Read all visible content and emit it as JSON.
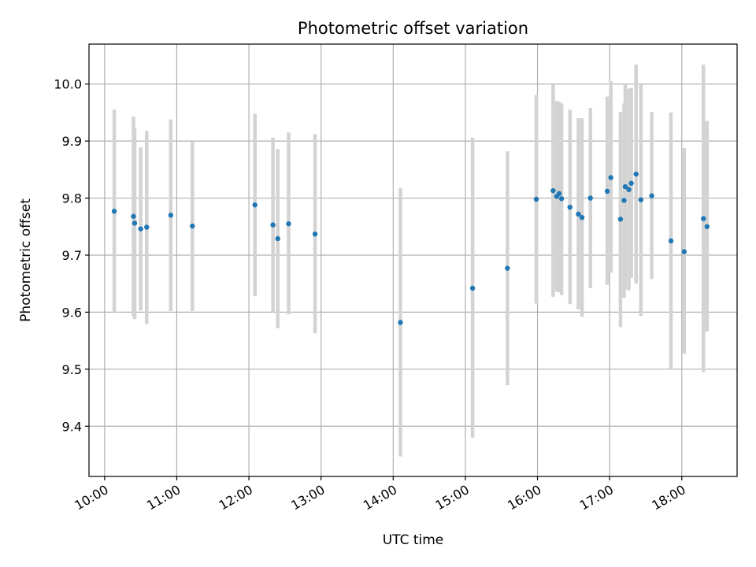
{
  "chart_data": {
    "type": "scatter",
    "title": "Photometric offset variation",
    "xlabel": "UTC time",
    "ylabel": "Photometric offset",
    "x_ticks": [
      "10:00",
      "11:00",
      "12:00",
      "13:00",
      "14:00",
      "15:00",
      "16:00",
      "17:00",
      "18:00"
    ],
    "y_ticks": [
      "9.4",
      "9.5",
      "9.6",
      "9.7",
      "9.8",
      "9.9",
      "10.0"
    ],
    "xlim": [
      "09:47",
      "18:46"
    ],
    "ylim": [
      9.312,
      10.07
    ],
    "grid": true,
    "point_color": "#1f77b4",
    "errorbar_color": "#d3d3d3",
    "points": [
      {
        "x": "10:08",
        "y": 9.777,
        "lo": 9.6,
        "hi": 9.955
      },
      {
        "x": "10:24",
        "y": 9.768,
        "lo": 9.593,
        "hi": 9.943
      },
      {
        "x": "10:25",
        "y": 9.756,
        "lo": 9.588,
        "hi": 9.924
      },
      {
        "x": "10:30",
        "y": 9.746,
        "lo": 9.603,
        "hi": 9.889
      },
      {
        "x": "10:35",
        "y": 9.749,
        "lo": 9.579,
        "hi": 9.918
      },
      {
        "x": "10:55",
        "y": 9.77,
        "lo": 9.602,
        "hi": 9.938
      },
      {
        "x": "11:13",
        "y": 9.751,
        "lo": 9.602,
        "hi": 9.899
      },
      {
        "x": "12:05",
        "y": 9.788,
        "lo": 9.628,
        "hi": 9.948
      },
      {
        "x": "12:20",
        "y": 9.753,
        "lo": 9.6,
        "hi": 9.906
      },
      {
        "x": "12:24",
        "y": 9.729,
        "lo": 9.572,
        "hi": 9.886
      },
      {
        "x": "12:33",
        "y": 9.755,
        "lo": 9.596,
        "hi": 9.915
      },
      {
        "x": "12:55",
        "y": 9.737,
        "lo": 9.563,
        "hi": 9.912
      },
      {
        "x": "14:06",
        "y": 9.582,
        "lo": 9.347,
        "hi": 9.818
      },
      {
        "x": "15:06",
        "y": 9.642,
        "lo": 9.38,
        "hi": 9.906
      },
      {
        "x": "15:35",
        "y": 9.677,
        "lo": 9.472,
        "hi": 9.882
      },
      {
        "x": "15:59",
        "y": 9.798,
        "lo": 9.615,
        "hi": 9.981
      },
      {
        "x": "16:13",
        "y": 9.813,
        "lo": 9.627,
        "hi": 9.999
      },
      {
        "x": "16:16",
        "y": 9.803,
        "lo": 9.636,
        "hi": 9.97
      },
      {
        "x": "16:18",
        "y": 9.808,
        "lo": 9.635,
        "hi": 9.969
      },
      {
        "x": "16:20",
        "y": 9.799,
        "lo": 9.63,
        "hi": 9.966
      },
      {
        "x": "16:27",
        "y": 9.784,
        "lo": 9.614,
        "hi": 9.955
      },
      {
        "x": "16:34",
        "y": 9.772,
        "lo": 9.605,
        "hi": 9.94
      },
      {
        "x": "16:37",
        "y": 9.766,
        "lo": 9.592,
        "hi": 9.94
      },
      {
        "x": "16:44",
        "y": 9.8,
        "lo": 9.642,
        "hi": 9.958
      },
      {
        "x": "16:58",
        "y": 9.812,
        "lo": 9.648,
        "hi": 9.978
      },
      {
        "x": "17:01",
        "y": 9.836,
        "lo": 9.669,
        "hi": 10.005
      },
      {
        "x": "17:09",
        "y": 9.763,
        "lo": 9.574,
        "hi": 9.951
      },
      {
        "x": "17:12",
        "y": 9.796,
        "lo": 9.625,
        "hi": 9.966
      },
      {
        "x": "17:13",
        "y": 9.82,
        "lo": 9.64,
        "hi": 10.0
      },
      {
        "x": "17:16",
        "y": 9.815,
        "lo": 9.638,
        "hi": 9.992
      },
      {
        "x": "17:18",
        "y": 9.826,
        "lo": 9.66,
        "hi": 9.993
      },
      {
        "x": "17:22",
        "y": 9.842,
        "lo": 9.65,
        "hi": 10.034
      },
      {
        "x": "17:26",
        "y": 9.797,
        "lo": 9.593,
        "hi": 10.0
      },
      {
        "x": "17:35",
        "y": 9.804,
        "lo": 9.658,
        "hi": 9.951
      },
      {
        "x": "17:51",
        "y": 9.725,
        "lo": 9.5,
        "hi": 9.95
      },
      {
        "x": "18:02",
        "y": 9.706,
        "lo": 9.527,
        "hi": 9.888
      },
      {
        "x": "18:18",
        "y": 9.764,
        "lo": 9.495,
        "hi": 10.034
      },
      {
        "x": "18:21",
        "y": 9.75,
        "lo": 9.566,
        "hi": 9.935
      }
    ]
  }
}
